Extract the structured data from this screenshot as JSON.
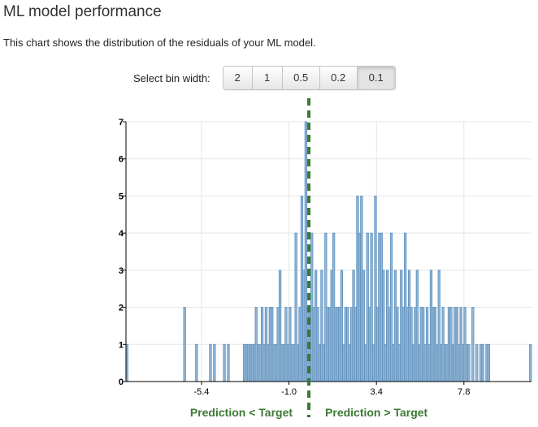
{
  "page": {
    "title": "ML model performance",
    "description": "This chart shows the distribution of the residuals of your ML model."
  },
  "bin_selector": {
    "label": "Select bin width:",
    "options": [
      "2",
      "1",
      "0.5",
      "0.2",
      "0.1"
    ],
    "selected": "0.1"
  },
  "colors": {
    "bar_fill": "#93b6d5",
    "bar_stroke": "#5b8fbd",
    "zero_line": "#3b7a34",
    "grid": "#e5e5e5",
    "region_label": "#3b7a34"
  },
  "regions": {
    "left_label": "Prediction < Target",
    "right_label": "Prediction > Target"
  },
  "chart_data": {
    "type": "bar",
    "title": "",
    "xlabel": "",
    "ylabel": "",
    "bin_width": 0.1,
    "xlim": [
      -9.2,
      11.2
    ],
    "ylim": [
      0,
      7
    ],
    "x_ticks": [
      -5.4,
      -1.0,
      3.4,
      7.8
    ],
    "x_tick_labels": [
      "-5.4",
      "-1.0",
      "3.4",
      "7.8"
    ],
    "y_ticks": [
      0,
      1,
      2,
      3,
      4,
      5,
      6,
      7
    ],
    "y_tick_labels": [
      "0",
      "1",
      "2",
      "3",
      "4",
      "5",
      "6",
      "7"
    ],
    "zero_line_x": 0,
    "grid": true,
    "bin_starts": [
      -9.2,
      -6.3,
      -5.7,
      -5.0,
      -4.8,
      -4.3,
      -4.1,
      -3.3,
      -3.2,
      -3.1,
      -3.0,
      -2.9,
      -2.8,
      -2.7,
      -2.6,
      -2.5,
      -2.4,
      -2.3,
      -2.2,
      -2.1,
      -2.0,
      -1.9,
      -1.8,
      -1.7,
      -1.6,
      -1.5,
      -1.4,
      -1.3,
      -1.2,
      -1.1,
      -1.0,
      -0.9,
      -0.8,
      -0.7,
      -0.6,
      -0.5,
      -0.4,
      -0.3,
      -0.2,
      -0.1,
      0.0,
      0.1,
      0.2,
      0.3,
      0.4,
      0.5,
      0.6,
      0.7,
      0.8,
      0.9,
      1.0,
      1.1,
      1.2,
      1.3,
      1.4,
      1.5,
      1.6,
      1.7,
      1.8,
      1.9,
      2.0,
      2.1,
      2.2,
      2.3,
      2.4,
      2.5,
      2.6,
      2.7,
      2.8,
      2.9,
      3.0,
      3.1,
      3.2,
      3.3,
      3.4,
      3.5,
      3.6,
      3.7,
      3.8,
      3.9,
      4.0,
      4.1,
      4.2,
      4.3,
      4.4,
      4.5,
      4.6,
      4.7,
      4.8,
      4.9,
      5.0,
      5.1,
      5.2,
      5.3,
      5.4,
      5.5,
      5.6,
      5.7,
      5.8,
      5.9,
      6.0,
      6.1,
      6.2,
      6.3,
      6.4,
      6.5,
      6.6,
      6.7,
      6.8,
      6.9,
      7.0,
      7.1,
      7.2,
      7.3,
      7.4,
      7.5,
      7.6,
      7.7,
      7.8,
      7.9,
      8.0,
      8.2,
      8.4,
      8.6,
      8.7,
      8.9,
      9.0,
      11.1
    ],
    "counts": [
      1,
      2,
      1,
      1,
      1,
      1,
      1,
      1,
      1,
      1,
      1,
      1,
      1,
      2,
      1,
      1,
      2,
      1,
      2,
      1,
      2,
      2,
      1,
      1,
      2,
      3,
      1,
      1,
      2,
      1,
      2,
      1,
      1,
      4,
      1,
      2,
      5,
      3,
      7,
      2,
      2,
      4,
      2,
      3,
      2,
      1,
      3,
      1,
      4,
      2,
      2,
      3,
      4,
      2,
      2,
      2,
      3,
      1,
      2,
      2,
      1,
      2,
      3,
      2,
      5,
      4,
      5,
      3,
      1,
      4,
      2,
      4,
      1,
      5,
      2,
      4,
      4,
      3,
      1,
      3,
      2,
      4,
      1,
      3,
      2,
      1,
      3,
      2,
      4,
      2,
      3,
      2,
      1,
      2,
      3,
      1,
      2,
      2,
      1,
      2,
      1,
      3,
      2,
      2,
      1,
      3,
      1,
      2,
      1,
      1,
      2,
      2,
      1,
      2,
      2,
      1,
      2,
      1,
      2,
      1,
      1,
      2,
      1,
      1,
      1,
      1,
      1,
      1
    ]
  }
}
